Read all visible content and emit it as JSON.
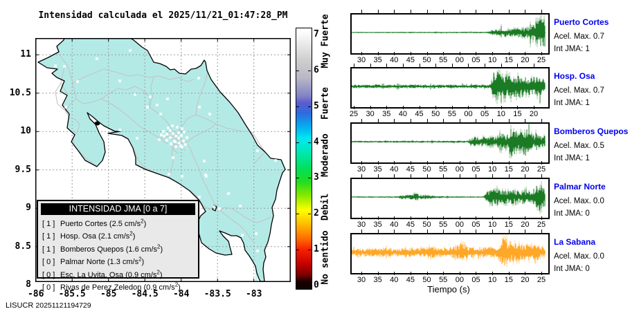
{
  "title": "Intensidad calculada el 2025/11/21_01:47:28_PM",
  "footer": {
    "org": "LISUCR",
    "code": "20251121194729"
  },
  "map": {
    "x_tick_labels": [
      "-86",
      "-85.5",
      "-85",
      "-84.5",
      "-84",
      "-83.5",
      "-83"
    ],
    "y_tick_labels": [
      "11",
      "10.5",
      "10",
      "9.5",
      "9",
      "8.5",
      "8"
    ],
    "land_color": "#b4eae6",
    "road_color": "#c3c3c3",
    "coast_color": "#000000",
    "marker_color": "#ffffff"
  },
  "legend": {
    "header": "INTENSIDAD JMA [0 a 7]",
    "unit": "cm/s",
    "items": [
      {
        "jma": "1",
        "name": "Puerto Cortes",
        "accel": "2.5"
      },
      {
        "jma": "1",
        "name": "Hosp. Osa",
        "accel": "2.1"
      },
      {
        "jma": "1",
        "name": "Bomberos Quepos",
        "accel": "1.6"
      },
      {
        "jma": "0",
        "name": "Palmar Norte",
        "accel": "1.3"
      },
      {
        "jma": "0",
        "name": "Esc. La Uvita. Osa",
        "accel": "0.9"
      },
      {
        "jma": "0",
        "name": "Rivas de Perez Zeledon",
        "accel": "0.9"
      }
    ]
  },
  "colorbar": {
    "tick_labels": [
      "0",
      "1",
      "2",
      "3",
      "4",
      "5",
      "6",
      "7"
    ],
    "category_labels": [
      "No sentido",
      "Debil",
      "Moderado",
      "Fuerte",
      "Muy Fuerte"
    ],
    "range": [
      0,
      7
    ],
    "stops": [
      [
        0.0,
        "#ffffff"
      ],
      [
        0.8,
        "#cfcfcf"
      ],
      [
        1.3,
        "#b8b8c6"
      ],
      [
        1.8,
        "#8585c5"
      ],
      [
        2.0,
        "#5b5bd0"
      ],
      [
        2.3,
        "#2d6ce0"
      ],
      [
        2.7,
        "#00b4f0"
      ],
      [
        3.0,
        "#00e8f0"
      ],
      [
        3.4,
        "#00e8b0"
      ],
      [
        3.8,
        "#00e060"
      ],
      [
        4.2,
        "#20dd20"
      ],
      [
        4.6,
        "#8ae800"
      ],
      [
        5.0,
        "#ffff00"
      ],
      [
        5.4,
        "#ffb900"
      ],
      [
        5.8,
        "#ff6a00"
      ],
      [
        6.1,
        "#f52000"
      ],
      [
        6.5,
        "#c40000"
      ],
      [
        6.8,
        "#7a0000"
      ],
      [
        7.0,
        "#140000"
      ]
    ]
  },
  "chart_data": {
    "type": "line",
    "xlabel": "Tiempo (s)",
    "charts": [
      {
        "station": "Puerto Cortes",
        "acel_label": "Acel. Max. 0.7",
        "int_label": "Int JMA: 1",
        "color": "#1b7a24",
        "x_tick_labels": [
          "30",
          "35",
          "40",
          "45",
          "50",
          "55",
          "00",
          "05",
          "10",
          "15",
          "20",
          "25"
        ],
        "amplitude_envelope": [
          [
            0,
            0.03
          ],
          [
            0.7,
            0.04
          ],
          [
            0.73,
            0.15
          ],
          [
            0.78,
            0.25
          ],
          [
            0.83,
            0.2
          ],
          [
            0.87,
            0.3
          ],
          [
            0.91,
            0.28
          ],
          [
            0.96,
            0.7
          ],
          [
            1,
            1.0
          ]
        ]
      },
      {
        "station": "Hosp. Osa",
        "acel_label": "Acel. Max. 0.7",
        "int_label": "Int JMA: 1",
        "color": "#1b7a24",
        "x_tick_labels": [
          "25",
          "30",
          "35",
          "40",
          "45",
          "50",
          "55",
          "00",
          "05",
          "10",
          "15",
          "20"
        ],
        "amplitude_envelope": [
          [
            0,
            0.1
          ],
          [
            0.7,
            0.1
          ],
          [
            0.72,
            0.12
          ],
          [
            0.735,
            0.85
          ],
          [
            0.78,
            0.95
          ],
          [
            0.83,
            0.55
          ],
          [
            0.87,
            0.7
          ],
          [
            0.92,
            0.5
          ],
          [
            0.97,
            0.65
          ],
          [
            1,
            0.45
          ]
        ]
      },
      {
        "station": "Bomberos Quepos",
        "acel_label": "Acel. Max. 0.5",
        "int_label": "Int JMA: 1",
        "color": "#1b7a24",
        "x_tick_labels": [
          "30",
          "35",
          "40",
          "45",
          "50",
          "55",
          "00",
          "05",
          "10",
          "15",
          "20",
          "25"
        ],
        "amplitude_envelope": [
          [
            0,
            0.05
          ],
          [
            0.6,
            0.06
          ],
          [
            0.63,
            0.28
          ],
          [
            0.67,
            0.22
          ],
          [
            0.71,
            0.3
          ],
          [
            0.75,
            0.28
          ],
          [
            0.77,
            0.55
          ],
          [
            0.8,
            0.4
          ],
          [
            0.83,
            0.95
          ],
          [
            0.86,
            0.45
          ],
          [
            0.9,
            0.85
          ],
          [
            0.94,
            0.4
          ],
          [
            1,
            0.35
          ]
        ]
      },
      {
        "station": "Palmar Norte",
        "acel_label": "Acel. Max. 0.0",
        "int_label": "Int JMA: 0",
        "color": "#1b7a24",
        "x_tick_labels": [
          "30",
          "35",
          "40",
          "45",
          "50",
          "55",
          "00",
          "05",
          "10",
          "15",
          "20",
          "25"
        ],
        "amplitude_envelope": [
          [
            0,
            0.04
          ],
          [
            0.23,
            0.04
          ],
          [
            0.26,
            0.12
          ],
          [
            0.3,
            0.12
          ],
          [
            0.33,
            0.25
          ],
          [
            0.36,
            0.12
          ],
          [
            0.4,
            0.12
          ],
          [
            0.44,
            0.06
          ],
          [
            0.55,
            0.04
          ],
          [
            0.68,
            0.04
          ],
          [
            0.71,
            0.4
          ],
          [
            0.75,
            0.5
          ],
          [
            0.79,
            0.38
          ],
          [
            0.83,
            0.42
          ],
          [
            0.87,
            0.33
          ],
          [
            0.9,
            0.5
          ],
          [
            0.93,
            0.33
          ],
          [
            0.97,
            0.9
          ],
          [
            1,
            0.55
          ]
        ]
      },
      {
        "station": "La Sabana",
        "acel_label": "Acel. Max. 0.0",
        "int_label": "Int JMA: 0",
        "color": "#ffa726",
        "x_tick_labels": [
          "30",
          "35",
          "40",
          "45",
          "50",
          "55",
          "00",
          "05",
          "10",
          "15",
          "20",
          "25"
        ],
        "amplitude_envelope": [
          [
            0,
            0.2
          ],
          [
            0.15,
            0.24
          ],
          [
            0.18,
            0.32
          ],
          [
            0.22,
            0.2
          ],
          [
            0.28,
            0.28
          ],
          [
            0.35,
            0.2
          ],
          [
            0.4,
            0.36
          ],
          [
            0.45,
            0.24
          ],
          [
            0.52,
            0.32
          ],
          [
            0.56,
            0.5
          ],
          [
            0.58,
            0.65
          ],
          [
            0.61,
            0.3
          ],
          [
            0.66,
            0.24
          ],
          [
            0.7,
            0.32
          ],
          [
            0.75,
            0.28
          ],
          [
            0.79,
            0.9
          ],
          [
            0.82,
            0.65
          ],
          [
            0.86,
            0.55
          ],
          [
            0.9,
            0.5
          ],
          [
            0.95,
            0.42
          ],
          [
            1,
            0.36
          ]
        ]
      }
    ]
  },
  "station_name_color": "#0000ee"
}
